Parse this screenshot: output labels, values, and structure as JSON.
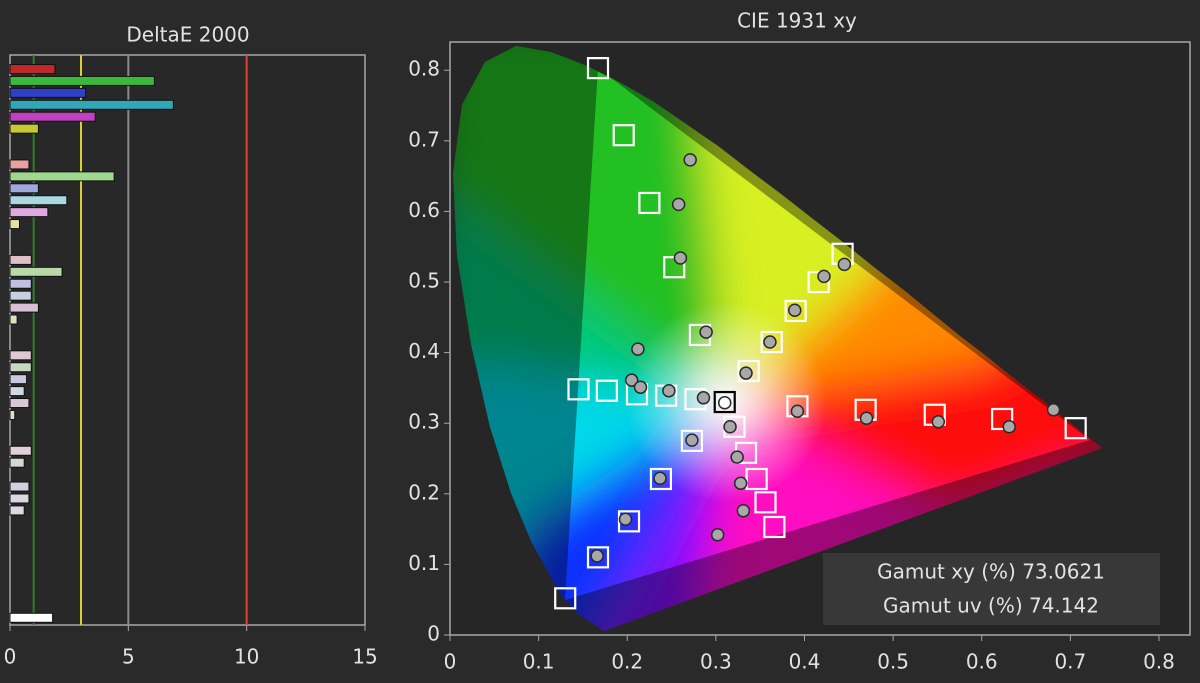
{
  "chart_data": [
    {
      "type": "bar",
      "orientation": "horizontal",
      "title": "DeltaE 2000",
      "categories": [
        null,
        null,
        null,
        null,
        null,
        null,
        null,
        null,
        null,
        null,
        null,
        null,
        null,
        null,
        null,
        null,
        null,
        null,
        null,
        null,
        null,
        null,
        null,
        null,
        null,
        null,
        null,
        null,
        null,
        null,
        null,
        null,
        null,
        null,
        null,
        null,
        null,
        null,
        null,
        null,
        null,
        null,
        null,
        null,
        null,
        null,
        null
      ],
      "values": [
        1.9,
        6.1,
        3.2,
        6.9,
        3.6,
        1.2,
        null,
        null,
        0.8,
        4.4,
        1.2,
        2.4,
        1.6,
        0.4,
        null,
        null,
        0.9,
        2.2,
        0.9,
        0.9,
        1.2,
        0.3,
        null,
        null,
        0.9,
        0.9,
        0.7,
        0.6,
        0.8,
        0.2,
        null,
        null,
        0.9,
        0.6,
        null,
        0.8,
        0.8,
        0.6,
        null,
        null,
        null,
        null,
        null,
        null,
        null,
        null,
        1.8
      ],
      "colors": [
        "#c0282a",
        "#3cb83c",
        "#3040c8",
        "#30a8b8",
        "#c040c0",
        "#c8c830",
        null,
        null,
        "#e8a0a0",
        "#a0d890",
        "#a0a8e0",
        "#a8d8e0",
        "#e0a8e0",
        "#e8e0a0",
        null,
        null,
        "#e0c0c8",
        "#b8d8a8",
        "#c0c0e0",
        "#c8d0e0",
        "#d8c0d8",
        "#e0e0c0",
        null,
        null,
        "#e0c8d0",
        "#c8d8c0",
        "#c8c8e0",
        "#d0d8e0",
        "#d8c8d8",
        "#e0e0c8",
        null,
        null,
        "#e0d0d8",
        "#d0d8d0",
        null,
        "#d0d0e0",
        "#d8d8e0",
        "#e0d8e0",
        null,
        null,
        null,
        null,
        null,
        null,
        null,
        null,
        "#ffffff"
      ],
      "xlim": [
        0,
        15
      ],
      "xticks": [
        0,
        5,
        10,
        15
      ],
      "reference_lines": [
        {
          "value": 1,
          "color": "#2e7d2e"
        },
        {
          "value": 3,
          "color": "#d8d030"
        },
        {
          "value": 5,
          "color": "#8a8a8a"
        },
        {
          "value": 10,
          "color": "#e04030"
        }
      ]
    },
    {
      "type": "scatter",
      "title": "CIE 1931 xy",
      "xlim": [
        0,
        0.835
      ],
      "ylim": [
        0,
        0.84
      ],
      "xticks": [
        0,
        0.1,
        0.2,
        0.3,
        0.4,
        0.5,
        0.6,
        0.7,
        0.8
      ],
      "yticks": [
        0,
        0.1,
        0.2,
        0.3,
        0.4,
        0.5,
        0.6,
        0.7,
        0.8
      ],
      "series": [
        {
          "marker": "square",
          "color": "#ffffff",
          "x": [
            0.167,
            0.196,
            0.225,
            0.253,
            0.282,
            0.145,
            0.177,
            0.211,
            0.244,
            0.277,
            0.321,
            0.334,
            0.346,
            0.356,
            0.366,
            0.337,
            0.363,
            0.39,
            0.416,
            0.443,
            0.392,
            0.469,
            0.547,
            0.623,
            0.706,
            0.273,
            0.238,
            0.202,
            0.167,
            0.13
          ],
          "y": [
            0.803,
            0.708,
            0.612,
            0.521,
            0.425,
            0.348,
            0.346,
            0.341,
            0.339,
            0.334,
            0.295,
            0.258,
            0.221,
            0.188,
            0.153,
            0.374,
            0.415,
            0.459,
            0.5,
            0.54,
            0.324,
            0.319,
            0.312,
            0.306,
            0.293,
            0.275,
            0.221,
            0.161,
            0.11,
            0.052
          ]
        },
        {
          "marker": "circle",
          "color": "#a8a8a8",
          "x": [
            0.271,
            0.258,
            0.26,
            0.289,
            0.212,
            0.205,
            0.215,
            0.247,
            0.286,
            0.334,
            0.361,
            0.389,
            0.422,
            0.445,
            0.392,
            0.47,
            0.551,
            0.631,
            0.681,
            0.316,
            0.324,
            0.328,
            0.331,
            0.302,
            0.273,
            0.237,
            0.198,
            0.166
          ],
          "y": [
            0.673,
            0.61,
            0.534,
            0.429,
            0.405,
            0.361,
            0.351,
            0.346,
            0.336,
            0.371,
            0.415,
            0.46,
            0.508,
            0.525,
            0.317,
            0.307,
            0.302,
            0.295,
            0.319,
            0.295,
            0.252,
            0.215,
            0.176,
            0.142,
            0.276,
            0.222,
            0.164,
            0.112
          ]
        },
        {
          "marker": "square",
          "color": "#000000",
          "x": [
            0.31
          ],
          "y": [
            0.33
          ]
        },
        {
          "marker": "circle",
          "color": "#ffffff",
          "x": [
            0.31
          ],
          "y": [
            0.329
          ]
        }
      ],
      "annotations": [
        "Gamut xy (%) 73.0621",
        "Gamut uv (%) 74.142"
      ]
    }
  ]
}
